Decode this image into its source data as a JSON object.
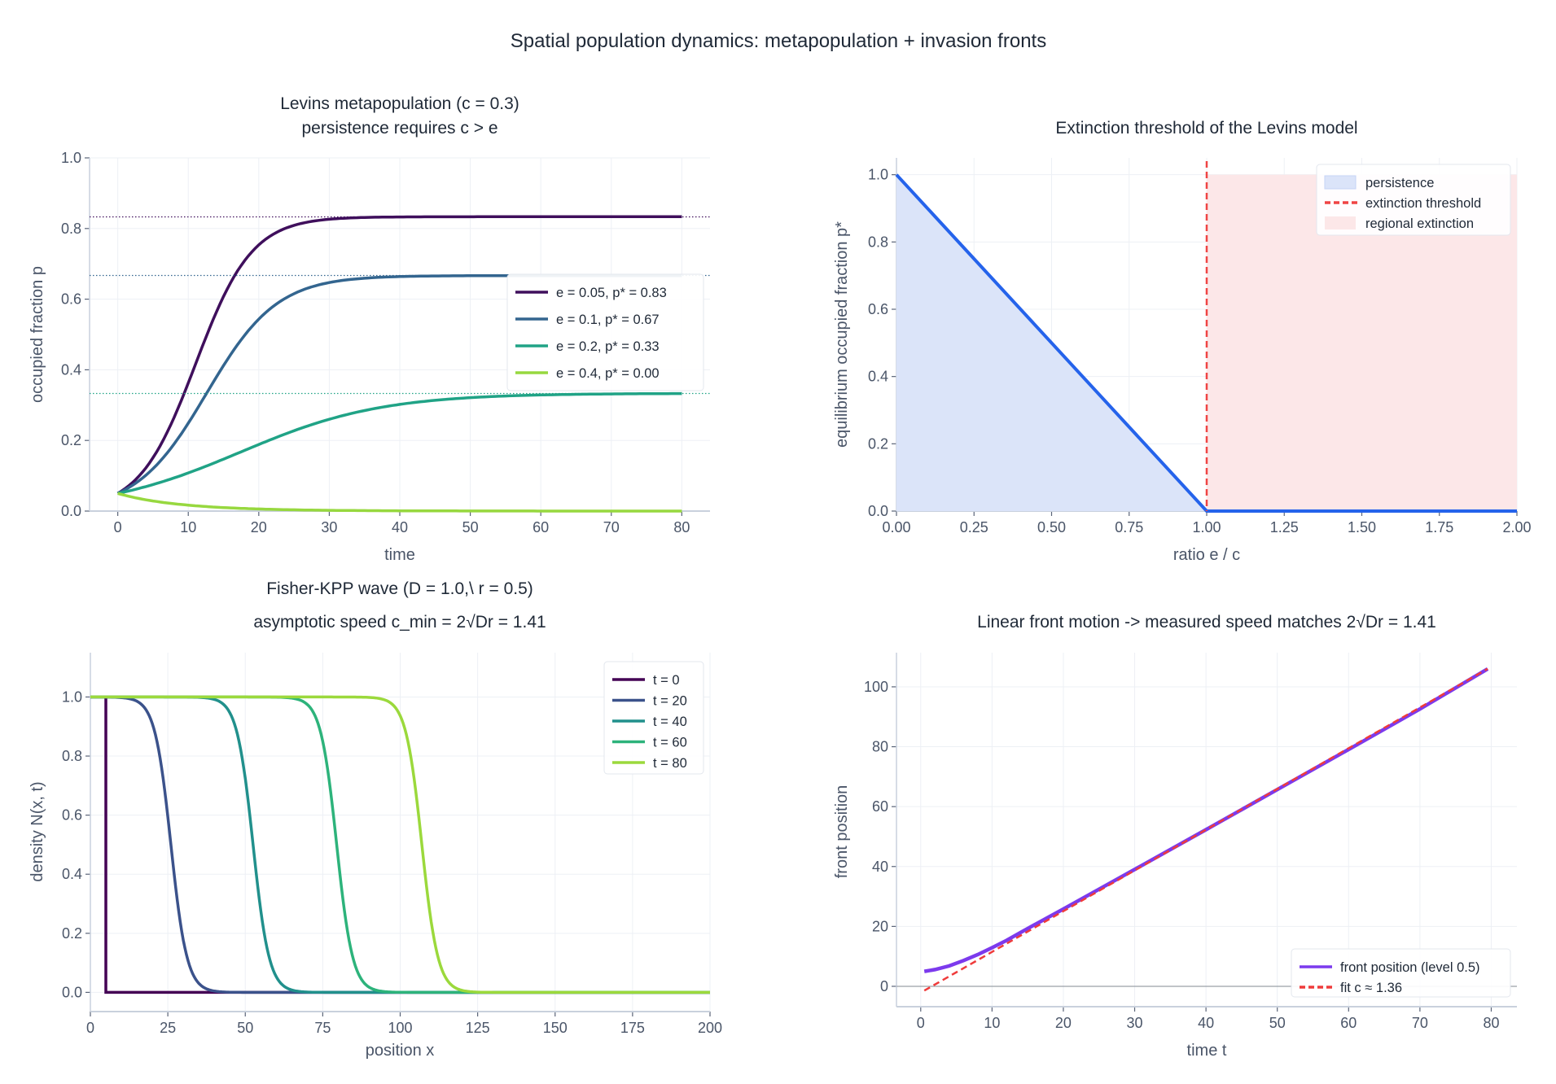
{
  "title": "Spatial population dynamics:  metapopulation + invasion fronts",
  "chart_data": [
    {
      "id": "levins",
      "type": "line",
      "title": "Levins metapopulation  (c = 0.3)",
      "subtitle": "persistence requires c > e",
      "xlabel": "time",
      "ylabel": "occupied fraction  p",
      "xlim": [
        -4,
        84
      ],
      "ylim": [
        0,
        1.0
      ],
      "xticks": [
        0,
        10,
        20,
        30,
        40,
        50,
        60,
        70,
        80
      ],
      "yticks": [
        0.0,
        0.2,
        0.4,
        0.6,
        0.8,
        1.0
      ],
      "grid": true,
      "legend": "center-right",
      "params": {
        "c": 0.3,
        "p0": 0.05,
        "t_max": 80
      },
      "series": [
        {
          "name": "e = 0.05, p* = 0.83",
          "e": 0.05,
          "p_star": 0.833,
          "color": "#3f0f5c"
        },
        {
          "name": "e = 0.1, p* = 0.67",
          "e": 0.1,
          "p_star": 0.667,
          "color": "#33658f"
        },
        {
          "name": "e = 0.2, p* = 0.33",
          "e": 0.2,
          "p_star": 0.333,
          "color": "#20a386"
        },
        {
          "name": "e = 0.4, p* = 0.00",
          "e": 0.4,
          "p_star": 0.0,
          "color": "#97d83f"
        }
      ],
      "reference_lines": "dotted horizontal at p* for e < c"
    },
    {
      "id": "threshold",
      "type": "area",
      "title": "Extinction threshold of the Levins model",
      "xlabel": "ratio  e / c",
      "ylabel": "equilibrium occupied fraction  p*",
      "xlim": [
        0,
        2.0
      ],
      "ylim": [
        0,
        1.05
      ],
      "xticks": [
        "0.00",
        "0.25",
        "0.50",
        "0.75",
        "1.00",
        "1.25",
        "1.50",
        "1.75",
        "2.00"
      ],
      "yticks": [
        0.0,
        0.2,
        0.4,
        0.6,
        0.8,
        1.0
      ],
      "grid": true,
      "legend": "top-right",
      "x": [
        0,
        1.0,
        2.0
      ],
      "y": [
        1.0,
        0.0,
        0.0
      ],
      "line_color": "#2563eb",
      "threshold": 1.0,
      "legend_entries": [
        {
          "label": "persistence",
          "color": "#dbe4f9"
        },
        {
          "label": "extinction threshold",
          "color": "#ef4444"
        },
        {
          "label": "regional extinction",
          "color": "#fce7e8"
        }
      ]
    },
    {
      "id": "fisher",
      "type": "line",
      "title": "Fisher-KPP wave  (D = 1.0,\\ r = 0.5)",
      "subtitle": "asymptotic speed  c_min = 2√Dr = 1.41",
      "xlabel": "position  x",
      "ylabel": "density  N(x, t)",
      "xlim": [
        0,
        200
      ],
      "ylim": [
        -0.065,
        1.15
      ],
      "xticks": [
        0,
        25,
        50,
        75,
        100,
        125,
        150,
        175,
        200
      ],
      "yticks": [
        0.0,
        0.2,
        0.4,
        0.6,
        0.8,
        1.0
      ],
      "grid": true,
      "legend": "top-right",
      "series": [
        {
          "name": "t = 0",
          "front_x": 5,
          "color": "#440154"
        },
        {
          "name": "t = 20",
          "front_x": 26,
          "color": "#3b528b"
        },
        {
          "name": "t = 40",
          "front_x": 52.5,
          "color": "#21908c"
        },
        {
          "name": "t = 60",
          "front_x": 79.5,
          "color": "#2db37b"
        },
        {
          "name": "t = 80",
          "front_x": 107,
          "color": "#9bd93c"
        }
      ]
    },
    {
      "id": "front",
      "type": "line",
      "title": "Linear front motion -> measured speed matches  2√Dr = 1.41",
      "xlabel": "time  t",
      "ylabel": "front position",
      "xlim": [
        -3.4,
        83.6
      ],
      "ylim": [
        -6.8,
        111.4
      ],
      "xticks": [
        0,
        10,
        20,
        30,
        40,
        50,
        60,
        70,
        80
      ],
      "yticks": [
        0,
        20,
        40,
        60,
        80,
        100
      ],
      "grid": true,
      "legend": "bottom-right",
      "series": [
        {
          "name": "front position (level 0.5)",
          "color": "#7c3aed",
          "x": [
            0.5,
            2,
            4,
            6,
            8,
            10,
            12,
            15,
            20,
            25,
            30,
            40,
            50,
            60,
            70,
            79.5
          ],
          "y": [
            5,
            5.6,
            6.8,
            8.6,
            10.6,
            12.9,
            15.3,
            19.3,
            25.8,
            32.4,
            39.0,
            52.3,
            65.7,
            79.1,
            92.6,
            106
          ]
        },
        {
          "name": "fit  c ≈ 1.36",
          "color": "#ef3b3b",
          "slope": 1.36,
          "intercept": -2.1,
          "x_range": [
            0.5,
            79.5
          ]
        }
      ]
    }
  ]
}
